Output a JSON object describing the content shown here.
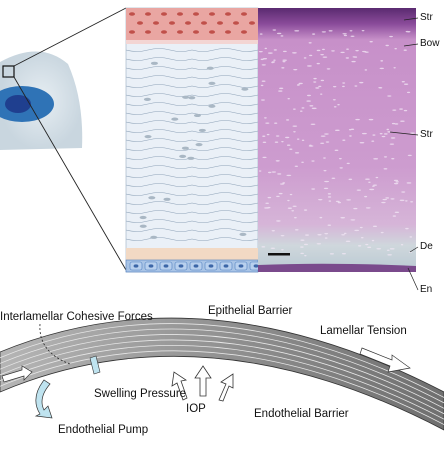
{
  "histology_labels": {
    "stroma_top": "Str",
    "bowman": "Bow",
    "stroma": "Str",
    "descemet": "De",
    "endothelium": "En"
  },
  "mechanics_labels": {
    "cohesive": "Interlamellar Cohesive Forces",
    "epithelial_barrier": "Epithelial Barrier",
    "lamellar_tension": "Lamellar Tension",
    "swelling_pressure": "Swelling Pressure",
    "iop": "IOP",
    "endothelial_barrier": "Endothelial Barrier",
    "endothelial_pump": "Endothelial Pump"
  },
  "colors": {
    "epithelium": "#e8a8a4",
    "stroma_panel": "#e9f0f7",
    "histology_bg": "#c98fc8",
    "histology_top": "#5a2a70",
    "endothelium": "#9fbde3",
    "cornea_band": "#8e8e8e",
    "iris": "#2f73b6"
  }
}
